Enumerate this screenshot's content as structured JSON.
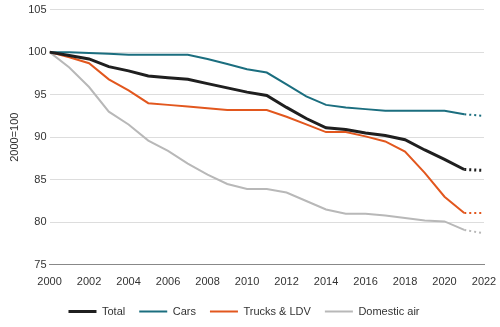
{
  "chart_data": {
    "type": "line",
    "y_label": "2000=100",
    "x": [
      2000,
      2001,
      2002,
      2003,
      2004,
      2005,
      2006,
      2007,
      2008,
      2009,
      2010,
      2011,
      2012,
      2013,
      2014,
      2015,
      2016,
      2017,
      2018,
      2019,
      2020,
      2021,
      2022
    ],
    "series": [
      {
        "name": "Total",
        "color": "#1f1f1f",
        "values": [
          100,
          99.6,
          99.2,
          98.3,
          97.8,
          97.2,
          97.0,
          96.8,
          96.3,
          95.8,
          95.3,
          94.9,
          93.5,
          92.2,
          91.1,
          90.9,
          90.5,
          90.2,
          89.7,
          88.5,
          87.4,
          86.2,
          86.1
        ]
      },
      {
        "name": "Cars",
        "color": "#1b6e7f",
        "values": [
          100,
          100,
          99.9,
          99.8,
          99.7,
          99.7,
          99.7,
          99.7,
          99.2,
          98.6,
          98.0,
          97.6,
          96.2,
          94.8,
          93.8,
          93.5,
          93.3,
          93.1,
          93.1,
          93.1,
          93.1,
          92.7,
          92.5
        ]
      },
      {
        "name": "Trucks & LDV",
        "color": "#e2571e",
        "values": [
          100,
          99.4,
          98.7,
          96.8,
          95.5,
          94.0,
          93.8,
          93.6,
          93.4,
          93.2,
          93.2,
          93.2,
          92.4,
          91.5,
          90.6,
          90.6,
          90.1,
          89.5,
          88.3,
          85.8,
          83.0,
          81.1,
          81.1
        ]
      },
      {
        "name": "Domestic air",
        "color": "#b8b8b8",
        "values": [
          100,
          98.2,
          95.9,
          93.0,
          91.5,
          89.6,
          88.4,
          86.9,
          85.6,
          84.5,
          83.9,
          83.9,
          83.5,
          82.5,
          81.5,
          81.0,
          81.0,
          80.8,
          80.5,
          80.2,
          80.1,
          79.1,
          78.7
        ]
      }
    ],
    "xlim": [
      2000,
      2022
    ],
    "xticks": [
      2000,
      2002,
      2004,
      2006,
      2008,
      2010,
      2012,
      2014,
      2016,
      2018,
      2020,
      2022
    ],
    "ylim": [
      75,
      105
    ],
    "yticks": [
      75,
      80,
      85,
      90,
      95,
      100,
      105
    ],
    "grid": true,
    "legend": "bottom"
  }
}
